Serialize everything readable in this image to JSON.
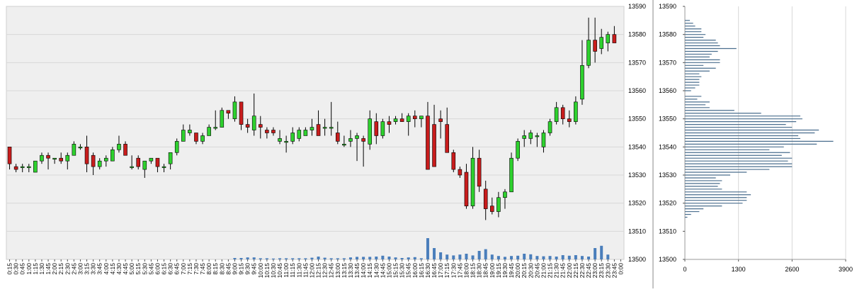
{
  "colors": {
    "plot_bg": "#efefef",
    "grid": "#d8d8d8",
    "bull": "#2ed12e",
    "bear": "#c81c1c",
    "candle_border": "#000000",
    "volume": "#4a7ebb",
    "profile": "#4a6e8e",
    "axis_text": "#000000",
    "divider": "#888888"
  },
  "chart_data": [
    {
      "type": "candlestick",
      "y_ticks": [
        13500,
        13510,
        13520,
        13530,
        13540,
        13550,
        13560,
        13570,
        13580,
        13590
      ],
      "ylim": [
        13500,
        13590
      ],
      "x_tick_labels": [
        "0:15",
        "0:30",
        "0:45",
        "1:00",
        "1:15",
        "1:30",
        "1:45",
        "2:00",
        "2:15",
        "2:30",
        "2:45",
        "3:00",
        "3:15",
        "3:30",
        "3:45",
        "4:00",
        "4:15",
        "4:30",
        "4:45",
        "5:00",
        "5:15",
        "5:30",
        "5:45",
        "6:00",
        "6:15",
        "6:30",
        "6:45",
        "7:00",
        "7:15",
        "7:30",
        "7:45",
        "8:00",
        "8:15",
        "8:30",
        "8:45",
        "9:00",
        "9:15",
        "9:30",
        "9:45",
        "10:00",
        "10:15",
        "10:30",
        "10:45",
        "11:00",
        "11:15",
        "11:30",
        "11:45",
        "12:00",
        "12:15",
        "12:30",
        "12:45",
        "13:00",
        "13:15",
        "13:30",
        "13:45",
        "14:00",
        "14:15",
        "14:30",
        "14:45",
        "15:00",
        "15:15",
        "15:30",
        "15:45",
        "16:00",
        "16:15",
        "16:30",
        "16:45",
        "17:00",
        "17:15",
        "17:30",
        "17:45",
        "18:00",
        "18:15",
        "18:30",
        "18:45",
        "19:00",
        "19:15",
        "19:30",
        "19:45",
        "20:00",
        "20:15",
        "20:30",
        "20:45",
        "21:00",
        "21:15",
        "21:30",
        "21:45",
        "22:00",
        "22:15",
        "22:30",
        "22:45",
        "23:00",
        "23:15",
        "23:30",
        "23:45",
        "0:00"
      ],
      "candles": [
        {
          "o": 13540,
          "h": 13540,
          "l": 13532,
          "c": 13534
        },
        {
          "o": 13533,
          "h": 13534,
          "l": 13531,
          "c": 13532
        },
        {
          "o": 13533,
          "h": 13534,
          "l": 13531,
          "c": 13533
        },
        {
          "o": 13533,
          "h": 13534,
          "l": 13531,
          "c": 13533
        },
        {
          "o": 13531,
          "h": 13535,
          "l": 13531,
          "c": 13535
        },
        {
          "o": 13535,
          "h": 13538,
          "l": 13534,
          "c": 13537
        },
        {
          "o": 13537,
          "h": 13538,
          "l": 13532,
          "c": 13536
        },
        {
          "o": 13536,
          "h": 13536,
          "l": 13534,
          "c": 13536
        },
        {
          "o": 13536,
          "h": 13538,
          "l": 13534,
          "c": 13535
        },
        {
          "o": 13535,
          "h": 13538,
          "l": 13532,
          "c": 13537
        },
        {
          "o": 13537,
          "h": 13542,
          "l": 13537,
          "c": 13541
        },
        {
          "o": 13540,
          "h": 13541,
          "l": 13539,
          "c": 13540
        },
        {
          "o": 13540,
          "h": 13544,
          "l": 13531,
          "c": 13534
        },
        {
          "o": 13537,
          "h": 13538,
          "l": 13530,
          "c": 13533
        },
        {
          "o": 13533,
          "h": 13536,
          "l": 13532,
          "c": 13535
        },
        {
          "o": 13535,
          "h": 13537,
          "l": 13533,
          "c": 13536
        },
        {
          "o": 13535,
          "h": 13540,
          "l": 13535,
          "c": 13539
        },
        {
          "o": 13539,
          "h": 13544,
          "l": 13538,
          "c": 13541
        },
        {
          "o": 13541,
          "h": 13542,
          "l": 13537,
          "c": 13537
        },
        {
          "o": 13533,
          "h": 13537,
          "l": 13532,
          "c": 13533
        },
        {
          "o": 13536,
          "h": 13537,
          "l": 13532,
          "c": 13533
        },
        {
          "o": 13532,
          "h": 13535,
          "l": 13529,
          "c": 13535
        },
        {
          "o": 13535,
          "h": 13536,
          "l": 13534,
          "c": 13536
        },
        {
          "o": 13536,
          "h": 13536,
          "l": 13531,
          "c": 13533
        },
        {
          "o": 13533,
          "h": 13534,
          "l": 13531,
          "c": 13533
        },
        {
          "o": 13534,
          "h": 13538,
          "l": 13532,
          "c": 13538
        },
        {
          "o": 13538,
          "h": 13543,
          "l": 13537,
          "c": 13542
        },
        {
          "o": 13542,
          "h": 13548,
          "l": 13542,
          "c": 13546
        },
        {
          "o": 13545,
          "h": 13548,
          "l": 13544,
          "c": 13546
        },
        {
          "o": 13545,
          "h": 13545,
          "l": 13541,
          "c": 13542
        },
        {
          "o": 13542,
          "h": 13545,
          "l": 13541,
          "c": 13544
        },
        {
          "o": 13544,
          "h": 13548,
          "l": 13544,
          "c": 13547
        },
        {
          "o": 13547,
          "h": 13553,
          "l": 13546,
          "c": 13547
        },
        {
          "o": 13547,
          "h": 13554,
          "l": 13547,
          "c": 13553
        },
        {
          "o": 13553,
          "h": 13553,
          "l": 13550,
          "c": 13552
        },
        {
          "o": 13550,
          "h": 13558,
          "l": 13549,
          "c": 13556
        },
        {
          "o": 13556,
          "h": 13556,
          "l": 13546,
          "c": 13548
        },
        {
          "o": 13548,
          "h": 13550,
          "l": 13545,
          "c": 13547
        },
        {
          "o": 13546,
          "h": 13559,
          "l": 13544,
          "c": 13551
        },
        {
          "o": 13548,
          "h": 13551,
          "l": 13543,
          "c": 13547
        },
        {
          "o": 13546,
          "h": 13547,
          "l": 13543,
          "c": 13545
        },
        {
          "o": 13546,
          "h": 13547,
          "l": 13544,
          "c": 13545
        },
        {
          "o": 13542,
          "h": 13546,
          "l": 13541,
          "c": 13543
        },
        {
          "o": 13542,
          "h": 13544,
          "l": 13538,
          "c": 13542
        },
        {
          "o": 13542,
          "h": 13547,
          "l": 13541,
          "c": 13545
        },
        {
          "o": 13543,
          "h": 13547,
          "l": 13542,
          "c": 13546
        },
        {
          "o": 13544,
          "h": 13547,
          "l": 13544,
          "c": 13546
        },
        {
          "o": 13546,
          "h": 13550,
          "l": 13544,
          "c": 13547
        },
        {
          "o": 13548,
          "h": 13553,
          "l": 13544,
          "c": 13544
        },
        {
          "o": 13547,
          "h": 13550,
          "l": 13544,
          "c": 13547
        },
        {
          "o": 13547,
          "h": 13556,
          "l": 13544,
          "c": 13547
        },
        {
          "o": 13545,
          "h": 13549,
          "l": 13541,
          "c": 13542
        },
        {
          "o": 13541,
          "h": 13544,
          "l": 13540,
          "c": 13541
        },
        {
          "o": 13542,
          "h": 13546,
          "l": 13540,
          "c": 13543
        },
        {
          "o": 13543,
          "h": 13545,
          "l": 13535,
          "c": 13544
        },
        {
          "o": 13543,
          "h": 13544,
          "l": 13533,
          "c": 13542
        },
        {
          "o": 13541,
          "h": 13553,
          "l": 13539,
          "c": 13550
        },
        {
          "o": 13549,
          "h": 13552,
          "l": 13541,
          "c": 13544
        },
        {
          "o": 13544,
          "h": 13550,
          "l": 13543,
          "c": 13549
        },
        {
          "o": 13549,
          "h": 13551,
          "l": 13545,
          "c": 13548
        },
        {
          "o": 13549,
          "h": 13551,
          "l": 13548,
          "c": 13550
        },
        {
          "o": 13550,
          "h": 13552,
          "l": 13549,
          "c": 13549
        },
        {
          "o": 13549,
          "h": 13552,
          "l": 13544,
          "c": 13551
        },
        {
          "o": 13551,
          "h": 13553,
          "l": 13547,
          "c": 13550
        },
        {
          "o": 13550,
          "h": 13551,
          "l": 13547,
          "c": 13551
        },
        {
          "o": 13551,
          "h": 13556,
          "l": 13532,
          "c": 13532
        },
        {
          "o": 13548,
          "h": 13555,
          "l": 13533,
          "c": 13533
        },
        {
          "o": 13550,
          "h": 13553,
          "l": 13543,
          "c": 13549
        },
        {
          "o": 13548,
          "h": 13554,
          "l": 13538,
          "c": 13538
        },
        {
          "o": 13538,
          "h": 13539,
          "l": 13531,
          "c": 13532
        },
        {
          "o": 13532,
          "h": 13533,
          "l": 13529,
          "c": 13530
        },
        {
          "o": 13531,
          "h": 13534,
          "l": 13518,
          "c": 13519
        },
        {
          "o": 13519,
          "h": 13540,
          "l": 13518,
          "c": 13536
        },
        {
          "o": 13536,
          "h": 13539,
          "l": 13524,
          "c": 13526
        },
        {
          "o": 13525,
          "h": 13528,
          "l": 13514,
          "c": 13518
        },
        {
          "o": 13519,
          "h": 13522,
          "l": 13516,
          "c": 13517
        },
        {
          "o": 13517,
          "h": 13524,
          "l": 13515,
          "c": 13522
        },
        {
          "o": 13522,
          "h": 13525,
          "l": 13518,
          "c": 13524
        },
        {
          "o": 13524,
          "h": 13538,
          "l": 13524,
          "c": 13536
        },
        {
          "o": 13536,
          "h": 13543,
          "l": 13535,
          "c": 13542
        },
        {
          "o": 13543,
          "h": 13546,
          "l": 13540,
          "c": 13544
        },
        {
          "o": 13543,
          "h": 13546,
          "l": 13541,
          "c": 13545
        },
        {
          "o": 13544,
          "h": 13545,
          "l": 13540,
          "c": 13544
        },
        {
          "o": 13540,
          "h": 13546,
          "l": 13538,
          "c": 13545
        },
        {
          "o": 13545,
          "h": 13550,
          "l": 13544,
          "c": 13549
        },
        {
          "o": 13549,
          "h": 13556,
          "l": 13548,
          "c": 13554
        },
        {
          "o": 13554,
          "h": 13555,
          "l": 13548,
          "c": 13550
        },
        {
          "o": 13550,
          "h": 13553,
          "l": 13547,
          "c": 13549
        },
        {
          "o": 13549,
          "h": 13558,
          "l": 13548,
          "c": 13556
        },
        {
          "o": 13557,
          "h": 13578,
          "l": 13555,
          "c": 13569
        },
        {
          "o": 13569,
          "h": 13586,
          "l": 13568,
          "c": 13578
        },
        {
          "o": 13578,
          "h": 13586,
          "l": 13570,
          "c": 13574
        },
        {
          "o": 13575,
          "h": 13582,
          "l": 13573,
          "c": 13579
        },
        {
          "o": 13577,
          "h": 13581,
          "l": 13574,
          "c": 13580
        },
        {
          "o": 13580,
          "h": 13583,
          "l": 13577,
          "c": 13577
        }
      ],
      "volume": [
        0,
        0,
        0,
        0,
        0,
        0,
        0,
        0,
        0,
        0,
        0,
        0,
        0,
        0,
        0,
        0,
        0,
        0,
        0,
        0,
        0,
        0,
        0,
        0,
        0,
        0,
        0,
        0,
        0,
        0,
        0,
        0,
        0,
        0,
        0,
        0.5,
        0.5,
        0.7,
        0.7,
        0.4,
        0.4,
        0.3,
        0.4,
        0.4,
        0.4,
        0.4,
        0.4,
        0.6,
        1.0,
        0.6,
        0.4,
        0.4,
        0.4,
        0.7,
        0.9,
        0.9,
        0.9,
        1.0,
        1.3,
        1.0,
        0.7,
        0.5,
        0.7,
        0.8,
        0.4,
        7.5,
        4.0,
        2.5,
        1.7,
        1.4,
        1.7,
        2.0,
        1.4,
        3.0,
        3.6,
        1.7,
        1.2,
        0.9,
        1.2,
        1.3,
        2.0,
        1.8,
        1.2,
        1.1,
        1.2,
        1.0,
        1.5,
        1.3,
        1.5,
        1.2,
        1.0,
        4.0,
        4.8,
        1.7,
        0,
        0,
        0,
        0
      ]
    },
    {
      "type": "bar",
      "orientation": "horizontal",
      "ylim": [
        13500,
        13590
      ],
      "y_ticks": [
        13500,
        13510,
        13520,
        13530,
        13540,
        13550,
        13560,
        13570,
        13580,
        13590
      ],
      "x_ticks": [
        0,
        1300,
        2600,
        3900
      ],
      "xlim": [
        0,
        3900
      ],
      "profile": [
        {
          "p": 13515,
          "v": 60
        },
        {
          "p": 13516,
          "v": 150
        },
        {
          "p": 13517,
          "v": 350
        },
        {
          "p": 13518,
          "v": 450
        },
        {
          "p": 13519,
          "v": 900
        },
        {
          "p": 13520,
          "v": 1400
        },
        {
          "p": 13521,
          "v": 1500
        },
        {
          "p": 13522,
          "v": 1500
        },
        {
          "p": 13523,
          "v": 1600
        },
        {
          "p": 13524,
          "v": 1500
        },
        {
          "p": 13525,
          "v": 900
        },
        {
          "p": 13526,
          "v": 800
        },
        {
          "p": 13527,
          "v": 850
        },
        {
          "p": 13528,
          "v": 900
        },
        {
          "p": 13529,
          "v": 750
        },
        {
          "p": 13530,
          "v": 1100
        },
        {
          "p": 13531,
          "v": 1500
        },
        {
          "p": 13532,
          "v": 2050
        },
        {
          "p": 13533,
          "v": 2600
        },
        {
          "p": 13534,
          "v": 2600
        },
        {
          "p": 13535,
          "v": 2500
        },
        {
          "p": 13536,
          "v": 2600
        },
        {
          "p": 13537,
          "v": 2350
        },
        {
          "p": 13538,
          "v": 2550
        },
        {
          "p": 13539,
          "v": 2050
        },
        {
          "p": 13540,
          "v": 2400
        },
        {
          "p": 13541,
          "v": 3200
        },
        {
          "p": 13542,
          "v": 3600
        },
        {
          "p": 13543,
          "v": 2800
        },
        {
          "p": 13544,
          "v": 2750
        },
        {
          "p": 13545,
          "v": 3150
        },
        {
          "p": 13546,
          "v": 3250
        },
        {
          "p": 13547,
          "v": 2600
        },
        {
          "p": 13548,
          "v": 2450
        },
        {
          "p": 13549,
          "v": 2700
        },
        {
          "p": 13550,
          "v": 2850
        },
        {
          "p": 13551,
          "v": 2800
        },
        {
          "p": 13552,
          "v": 1850
        },
        {
          "p": 13553,
          "v": 1200
        },
        {
          "p": 13554,
          "v": 600
        },
        {
          "p": 13555,
          "v": 500
        },
        {
          "p": 13556,
          "v": 600
        },
        {
          "p": 13557,
          "v": 300
        },
        {
          "p": 13558,
          "v": 400
        },
        {
          "p": 13560,
          "v": 150
        },
        {
          "p": 13561,
          "v": 250
        },
        {
          "p": 13562,
          "v": 350
        },
        {
          "p": 13563,
          "v": 350
        },
        {
          "p": 13564,
          "v": 350
        },
        {
          "p": 13565,
          "v": 400
        },
        {
          "p": 13566,
          "v": 350
        },
        {
          "p": 13567,
          "v": 600
        },
        {
          "p": 13568,
          "v": 750
        },
        {
          "p": 13569,
          "v": 450
        },
        {
          "p": 13570,
          "v": 850
        },
        {
          "p": 13571,
          "v": 850
        },
        {
          "p": 13572,
          "v": 600
        },
        {
          "p": 13573,
          "v": 650
        },
        {
          "p": 13574,
          "v": 800
        },
        {
          "p": 13575,
          "v": 1250
        },
        {
          "p": 13576,
          "v": 850
        },
        {
          "p": 13577,
          "v": 800
        },
        {
          "p": 13578,
          "v": 750
        },
        {
          "p": 13579,
          "v": 450
        },
        {
          "p": 13580,
          "v": 500
        },
        {
          "p": 13581,
          "v": 400
        },
        {
          "p": 13582,
          "v": 400
        },
        {
          "p": 13583,
          "v": 250
        },
        {
          "p": 13584,
          "v": 200
        },
        {
          "p": 13585,
          "v": 120
        }
      ]
    }
  ]
}
